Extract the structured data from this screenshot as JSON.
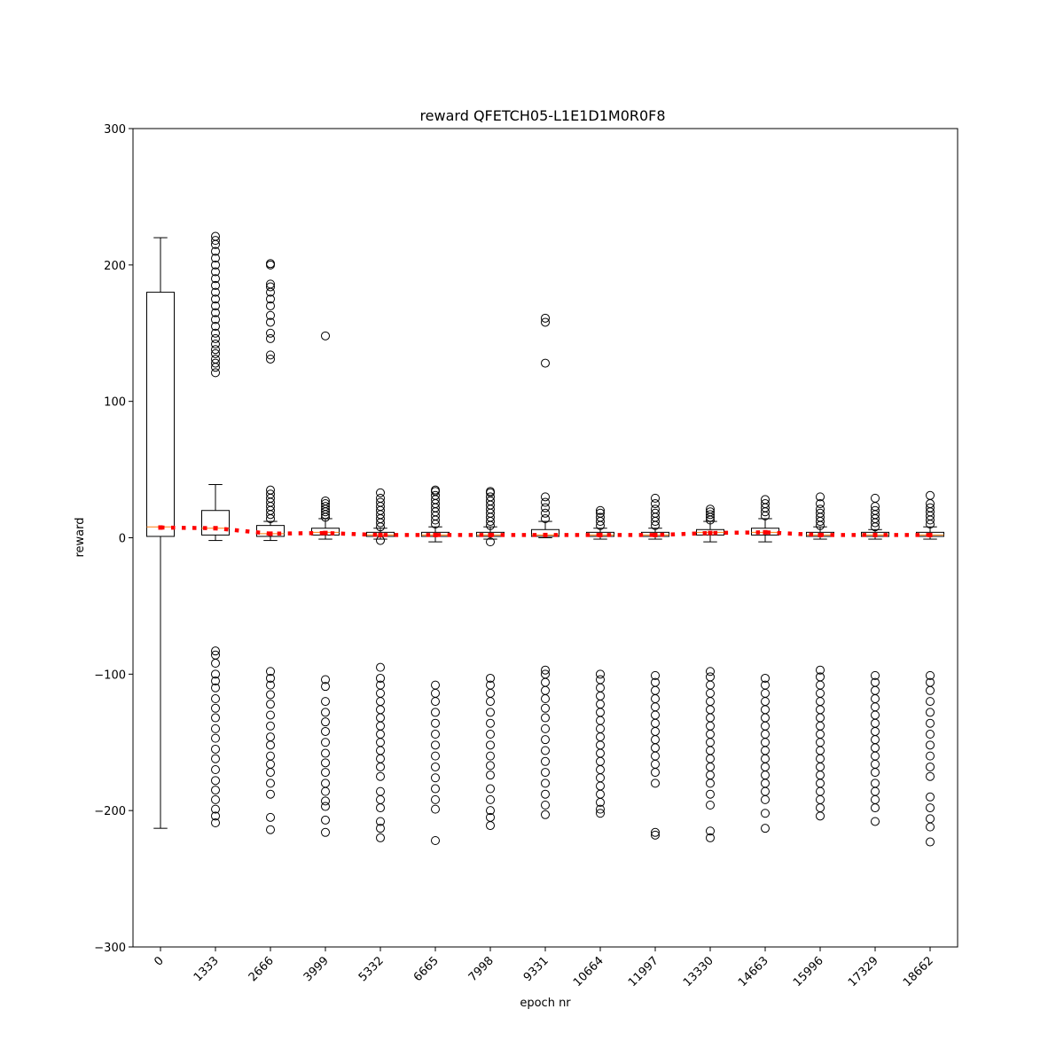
{
  "chart_data": {
    "type": "box",
    "title": "reward QFETCH05-L1E1D1M0R0F8",
    "xlabel": "epoch nr",
    "ylabel": "reward",
    "ylim": [
      -300,
      300
    ],
    "yticks": [
      -300,
      -200,
      -100,
      0,
      100,
      200,
      300
    ],
    "categories": [
      "0",
      "1333",
      "2666",
      "3999",
      "5332",
      "6665",
      "7998",
      "9331",
      "10664",
      "11997",
      "13330",
      "14663",
      "15996",
      "17329",
      "18662"
    ],
    "boxes": [
      {
        "q1": 1,
        "median": 8,
        "q3": 180,
        "whisker_low": -213,
        "whisker_high": 220,
        "outliers_high": [],
        "outliers_low": []
      },
      {
        "q1": 2,
        "median": 7,
        "q3": 20,
        "whisker_low": -2,
        "whisker_high": 39,
        "outliers_high": [
          121,
          125,
          128,
          131,
          135,
          138,
          142,
          146,
          150,
          155,
          160,
          165,
          170,
          175,
          180,
          185,
          190,
          195,
          200,
          205,
          210,
          215,
          218,
          221
        ],
        "outliers_low": [
          -83,
          -86,
          -92,
          -100,
          -105,
          -110,
          -118,
          -125,
          -132,
          -140,
          -147,
          -155,
          -162,
          -170,
          -178,
          -185,
          -192,
          -199,
          -204,
          -209
        ]
      },
      {
        "q1": 1,
        "median": 3,
        "q3": 9,
        "whisker_low": -2,
        "whisker_high": 12,
        "outliers_high": [
          14,
          17,
          20,
          23,
          26,
          29,
          32,
          35,
          131,
          134,
          146,
          150,
          158,
          163,
          170,
          175,
          180,
          184,
          186,
          200,
          201
        ],
        "outliers_low": [
          -98,
          -103,
          -108,
          -115,
          -122,
          -130,
          -138,
          -146,
          -152,
          -160,
          -166,
          -172,
          -180,
          -188,
          -205,
          -214
        ]
      },
      {
        "q1": 2,
        "median": 4,
        "q3": 7,
        "whisker_low": -1,
        "whisker_high": 14,
        "outliers_high": [
          15,
          17,
          19,
          21,
          23,
          25,
          27,
          148
        ],
        "outliers_low": [
          -104,
          -109,
          -120,
          -128,
          -135,
          -142,
          -150,
          -158,
          -165,
          -172,
          -180,
          -186,
          -193,
          -197,
          -207,
          -216
        ]
      },
      {
        "q1": 1,
        "median": 2,
        "q3": 4,
        "whisker_low": -1,
        "whisker_high": 7,
        "outliers_high": [
          8,
          11,
          14,
          17,
          20,
          23,
          26,
          29,
          33
        ],
        "outliers_low": [
          -2,
          -95,
          -103,
          -108,
          -114,
          -120,
          -126,
          -132,
          -138,
          -144,
          -150,
          -156,
          -162,
          -168,
          -175,
          -186,
          -192,
          -198,
          -208,
          -213,
          -220
        ]
      },
      {
        "q1": 1,
        "median": 2,
        "q3": 4,
        "whisker_low": -3,
        "whisker_high": 8,
        "outliers_high": [
          10,
          13,
          16,
          19,
          22,
          25,
          28,
          31,
          34,
          35
        ],
        "outliers_low": [
          -108,
          -114,
          -120,
          -128,
          -136,
          -144,
          -152,
          -160,
          -168,
          -176,
          -184,
          -192,
          -199,
          -222
        ]
      },
      {
        "q1": 1,
        "median": 2,
        "q3": 4,
        "whisker_low": -1,
        "whisker_high": 8,
        "outliers_high": [
          9,
          12,
          15,
          18,
          21,
          24,
          27,
          30,
          33,
          34
        ],
        "outliers_low": [
          -3,
          -103,
          -108,
          -114,
          -120,
          -128,
          -136,
          -144,
          -152,
          -160,
          -167,
          -174,
          -184,
          -192,
          -200,
          -205,
          -211
        ]
      },
      {
        "q1": 1,
        "median": 2,
        "q3": 6,
        "whisker_low": 0,
        "whisker_high": 12,
        "outliers_high": [
          14,
          18,
          22,
          26,
          30,
          128,
          158,
          161
        ],
        "outliers_low": [
          -97,
          -100,
          -106,
          -112,
          -118,
          -125,
          -132,
          -140,
          -148,
          -156,
          -164,
          -172,
          -180,
          -188,
          -196,
          -203
        ]
      },
      {
        "q1": 1,
        "median": 2,
        "q3": 4,
        "whisker_low": -1,
        "whisker_high": 7,
        "outliers_high": [
          9,
          12,
          15,
          18,
          20
        ],
        "outliers_low": [
          -100,
          -104,
          -110,
          -116,
          -122,
          -128,
          -134,
          -140,
          -146,
          -152,
          -158,
          -164,
          -170,
          -176,
          -182,
          -188,
          -194,
          -199,
          -202
        ]
      },
      {
        "q1": 1,
        "median": 2,
        "q3": 4,
        "whisker_low": -1,
        "whisker_high": 7,
        "outliers_high": [
          9,
          12,
          15,
          18,
          21,
          25,
          29
        ],
        "outliers_low": [
          -101,
          -106,
          -112,
          -118,
          -124,
          -130,
          -136,
          -142,
          -148,
          -154,
          -160,
          -166,
          -172,
          -180,
          -216,
          -218
        ]
      },
      {
        "q1": 2,
        "median": 4,
        "q3": 6,
        "whisker_low": -3,
        "whisker_high": 12,
        "outliers_high": [
          13,
          15,
          17,
          19,
          21
        ],
        "outliers_low": [
          -98,
          -102,
          -108,
          -114,
          -120,
          -126,
          -132,
          -138,
          -144,
          -150,
          -156,
          -162,
          -168,
          -174,
          -180,
          -188,
          -196,
          -215,
          -220
        ]
      },
      {
        "q1": 2,
        "median": 4,
        "q3": 7,
        "whisker_low": -3,
        "whisker_high": 14,
        "outliers_high": [
          16,
          19,
          22,
          25,
          28
        ],
        "outliers_low": [
          -103,
          -108,
          -114,
          -120,
          -126,
          -132,
          -138,
          -144,
          -150,
          -156,
          -162,
          -168,
          -174,
          -180,
          -186,
          -192,
          -202,
          -213
        ]
      },
      {
        "q1": 1,
        "median": 2,
        "q3": 4,
        "whisker_low": -1,
        "whisker_high": 8,
        "outliers_high": [
          9,
          12,
          15,
          18,
          21,
          25,
          30
        ],
        "outliers_low": [
          -97,
          -102,
          -108,
          -114,
          -120,
          -126,
          -132,
          -138,
          -144,
          -150,
          -156,
          -162,
          -168,
          -174,
          -180,
          -186,
          -192,
          -198,
          -204
        ]
      },
      {
        "q1": 1,
        "median": 2,
        "q3": 4,
        "whisker_low": -1,
        "whisker_high": 6,
        "outliers_high": [
          8,
          11,
          14,
          17,
          20,
          23,
          29
        ],
        "outliers_low": [
          -101,
          -106,
          -112,
          -118,
          -124,
          -130,
          -136,
          -142,
          -148,
          -154,
          -160,
          -166,
          -172,
          -180,
          -186,
          -192,
          -198,
          -208
        ]
      },
      {
        "q1": 1,
        "median": 2,
        "q3": 4,
        "whisker_low": -1,
        "whisker_high": 8,
        "outliers_high": [
          10,
          13,
          16,
          19,
          22,
          25,
          31
        ],
        "outliers_low": [
          -101,
          -106,
          -112,
          -120,
          -128,
          -136,
          -144,
          -152,
          -160,
          -168,
          -175,
          -190,
          -198,
          -206,
          -212,
          -223
        ]
      }
    ],
    "mean_line": {
      "values": [
        7.5,
        7,
        3,
        3.5,
        2,
        2,
        2,
        2,
        2,
        2,
        3.5,
        4,
        2,
        2,
        2
      ],
      "color": "#ff0000",
      "style": "dotted"
    },
    "median_color": "#ff7f0e",
    "grid": false
  }
}
